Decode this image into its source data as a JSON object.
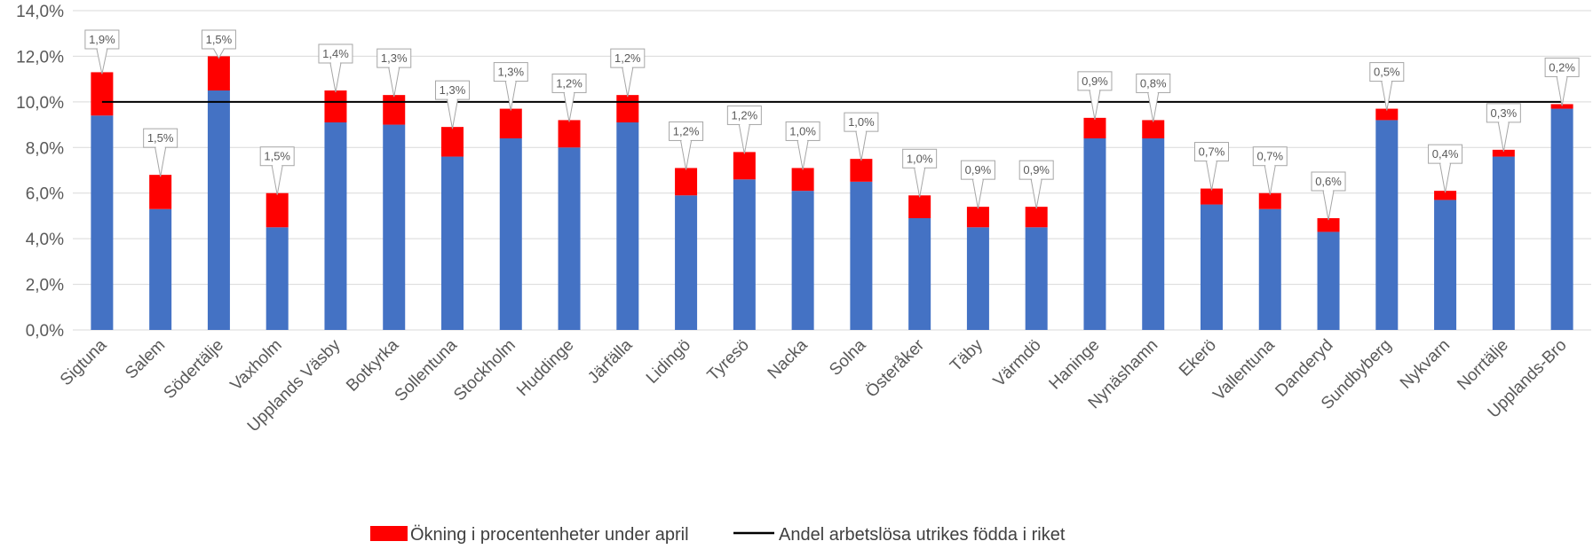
{
  "chart_data": {
    "type": "bar",
    "stacked": true,
    "title": "",
    "xlabel": "",
    "ylabel": "",
    "ylim": [
      0,
      14
    ],
    "yticks": [
      "0,0%",
      "2,0%",
      "4,0%",
      "6,0%",
      "8,0%",
      "10,0%",
      "12,0%",
      "14,0%"
    ],
    "grid": true,
    "legend_position": "bottom",
    "categories": [
      "Sigtuna",
      "Salem",
      "Södertälje",
      "Vaxholm",
      "Upplands Väsby",
      "Botkyrka",
      "Sollentuna",
      "Stockholm",
      "Huddinge",
      "Järfälla",
      "Lidingö",
      "Tyresö",
      "Nacka",
      "Solna",
      "Österåker",
      "Täby",
      "Värmdö",
      "Haninge",
      "Nynäshamn",
      "Ekerö",
      "Vallentuna",
      "Danderyd",
      "Sundbyberg",
      "Nykvarn",
      "Norrtälje",
      "Upplands-Bro"
    ],
    "series": [
      {
        "values": [
          9.4,
          5.3,
          10.5,
          4.5,
          9.1,
          9.0,
          7.6,
          8.4,
          8.0,
          9.1,
          5.9,
          6.6,
          6.1,
          6.5,
          4.9,
          4.5,
          4.5,
          8.4,
          8.4,
          5.5,
          5.3,
          4.3,
          9.2,
          5.7,
          7.6,
          9.7
        ],
        "color": "#4472C4"
      },
      {
        "name": "Ökning i procentenheter under april",
        "values": [
          1.9,
          1.5,
          1.5,
          1.5,
          1.4,
          1.3,
          1.3,
          1.3,
          1.2,
          1.2,
          1.2,
          1.2,
          1.0,
          1.0,
          1.0,
          0.9,
          0.9,
          0.9,
          0.8,
          0.7,
          0.7,
          0.6,
          0.5,
          0.4,
          0.3,
          0.2
        ],
        "labels": [
          "1,9%",
          "1,5%",
          "1,5%",
          "1,5%",
          "1,4%",
          "1,3%",
          "1,3%",
          "1,3%",
          "1,2%",
          "1,2%",
          "1,2%",
          "1,2%",
          "1,0%",
          "1,0%",
          "1,0%",
          "0,9%",
          "0,9%",
          "0,9%",
          "0,8%",
          "0,7%",
          "0,7%",
          "0,6%",
          "0,5%",
          "0,4%",
          "0,3%",
          "0,2%"
        ],
        "color": "#FF0000"
      }
    ],
    "reference_line": {
      "name": "Andel arbetslösa utrikes födda i riket",
      "value": 10.0,
      "color": "#000000"
    }
  }
}
